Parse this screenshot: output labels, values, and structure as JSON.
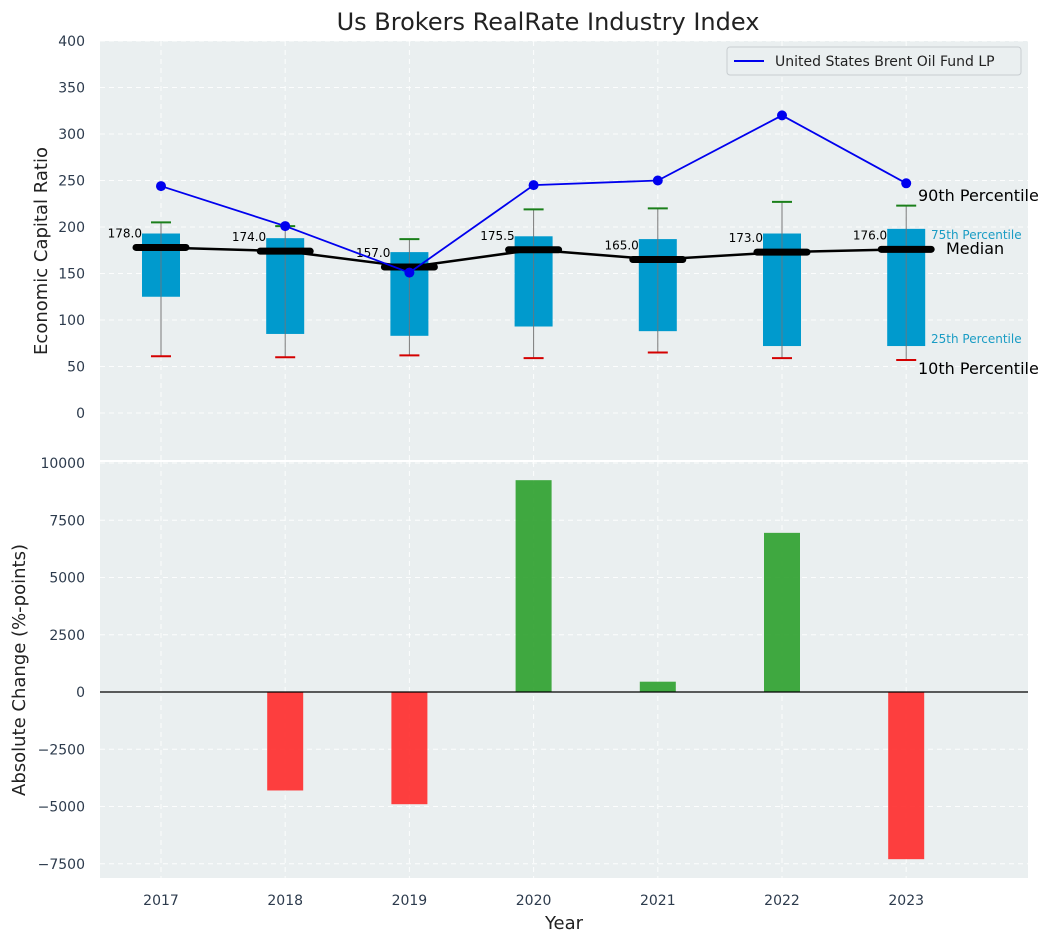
{
  "chart_data": [
    {
      "type": "box-line",
      "title": "Us Brokers RealRate Industry Index",
      "ylabel": "Economic Capital Ratio",
      "ylim": [
        0,
        400
      ],
      "yticks": [
        0,
        50,
        100,
        150,
        200,
        250,
        300,
        350,
        400
      ],
      "categories": [
        "2017",
        "2018",
        "2019",
        "2020",
        "2021",
        "2022",
        "2023"
      ],
      "grid": true,
      "legend_position": "top-right",
      "box_color": "#009ACD",
      "boxes": [
        {
          "p10": 61,
          "p25": 125,
          "median": 178.0,
          "p75": 193,
          "p90": 205
        },
        {
          "p10": 60,
          "p25": 85,
          "median": 174.0,
          "p75": 188,
          "p90": 201
        },
        {
          "p10": 62,
          "p25": 83,
          "median": 157.0,
          "p75": 173,
          "p90": 187
        },
        {
          "p10": 59,
          "p25": 93,
          "median": 175.5,
          "p75": 190,
          "p90": 219
        },
        {
          "p10": 65,
          "p25": 88,
          "median": 165.0,
          "p75": 187,
          "p90": 220
        },
        {
          "p10": 59,
          "p25": 72,
          "median": 173.0,
          "p75": 193,
          "p90": 227
        },
        {
          "p10": 57,
          "p25": 72,
          "median": 176.0,
          "p75": 198,
          "p90": 223
        }
      ],
      "median_labels": [
        "178.0",
        "174.0",
        "157.0",
        "175.5",
        "165.0",
        "173.0",
        "176.0"
      ],
      "series": [
        {
          "name": "United States Brent Oil Fund LP",
          "color": "#0000EE",
          "values": [
            244,
            201,
            151,
            245,
            250,
            320,
            247
          ]
        }
      ],
      "annotations": {
        "p90": "90th Percentile",
        "p75": "75th Percentile",
        "median": "Median",
        "p25": "25th Percentile",
        "p10": "10th Percentile"
      }
    },
    {
      "type": "bar",
      "ylabel": "Absolute Change (%-points)",
      "xlabel": "Year",
      "ylim": [
        -8000,
        10000
      ],
      "yticks": [
        -7500,
        -5000,
        -2500,
        0,
        2500,
        5000,
        7500,
        10000
      ],
      "ytick_labels": [
        "−7500",
        "−5000",
        "−2500",
        "0",
        "2500",
        "5000",
        "7500",
        "10000"
      ],
      "categories": [
        "2017",
        "2018",
        "2019",
        "2020",
        "2021",
        "2022",
        "2023"
      ],
      "values": [
        0,
        -4300,
        -4900,
        9250,
        450,
        6950,
        -7300
      ],
      "positive_color": "#2ca02c",
      "negative_color": "#ff2a2a",
      "grid": true
    }
  ]
}
